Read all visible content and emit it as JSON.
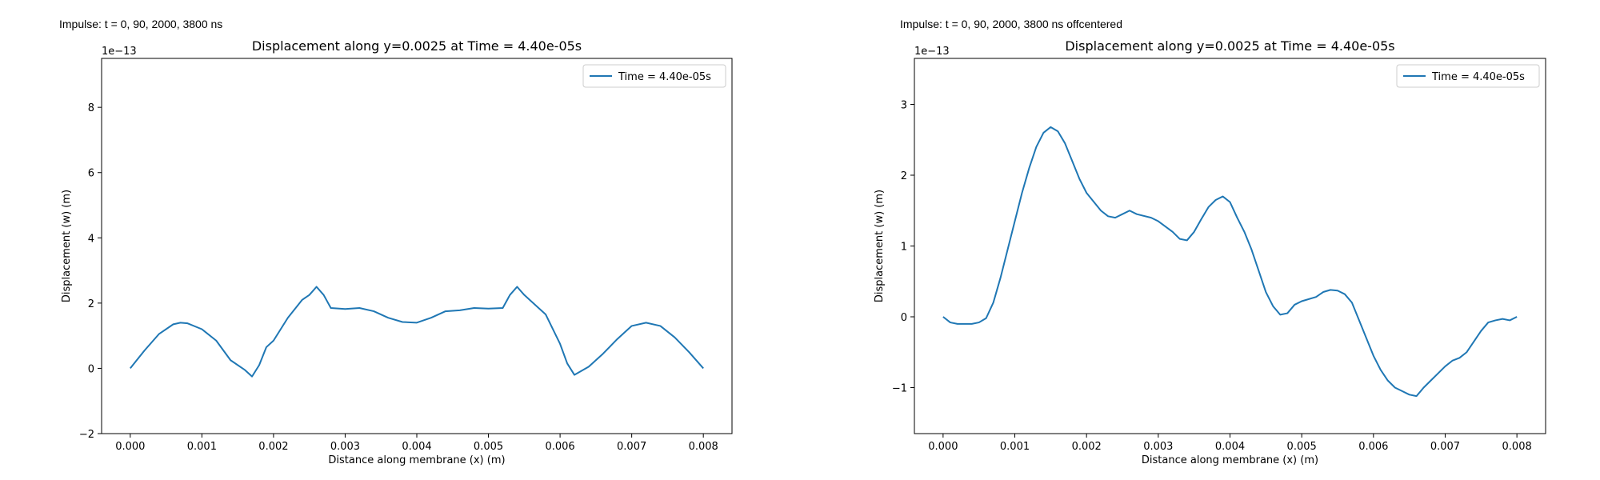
{
  "captions": [
    "Impulse: t = 0, 90, 2000, 3800 ns",
    "Impulse: t = 0, 90, 2000, 3800 ns offcentered"
  ],
  "chart_data": [
    {
      "type": "line",
      "title": "Displacement along y=0.0025 at Time = 4.40e-05s",
      "xlabel": "Distance along membrane (x) (m)",
      "ylabel": "Displacement (w) (m)",
      "y_multiplier": "1e−13",
      "xlim": [
        -0.0004,
        0.0084
      ],
      "ylim": [
        -2.0,
        9.5
      ],
      "xticks": [
        0.0,
        0.001,
        0.002,
        0.003,
        0.004,
        0.005,
        0.006,
        0.007,
        0.008
      ],
      "xtick_labels": [
        "0.000",
        "0.001",
        "0.002",
        "0.003",
        "0.004",
        "0.005",
        "0.006",
        "0.007",
        "0.008"
      ],
      "yticks": [
        -2,
        0,
        2,
        4,
        6,
        8
      ],
      "ytick_labels": [
        "−2",
        "0",
        "2",
        "4",
        "6",
        "8"
      ],
      "grid": false,
      "legend": "upper-right",
      "series": [
        {
          "name": "Time = 4.40e-05s",
          "color": "#1f77b4",
          "x": [
            0.0,
            0.0002,
            0.0004,
            0.0006,
            0.0007,
            0.0008,
            0.001,
            0.0012,
            0.0014,
            0.0016,
            0.0017,
            0.0018,
            0.0019,
            0.002,
            0.0022,
            0.0024,
            0.0025,
            0.0026,
            0.0027,
            0.0028,
            0.003,
            0.0032,
            0.0034,
            0.0036,
            0.0038,
            0.004,
            0.0042,
            0.0044,
            0.0046,
            0.0048,
            0.005,
            0.0052,
            0.0053,
            0.0054,
            0.0055,
            0.0058,
            0.006,
            0.0061,
            0.0062,
            0.0064,
            0.0066,
            0.0068,
            0.007,
            0.0072,
            0.0074,
            0.0076,
            0.0078,
            0.008
          ],
          "y": [
            0.0,
            0.55,
            1.05,
            1.35,
            1.4,
            1.38,
            1.2,
            0.85,
            0.25,
            -0.05,
            -0.25,
            0.1,
            0.65,
            0.85,
            1.55,
            2.1,
            2.25,
            2.5,
            2.25,
            1.85,
            1.82,
            1.85,
            1.75,
            1.55,
            1.42,
            1.4,
            1.55,
            1.75,
            1.78,
            1.85,
            1.83,
            1.85,
            2.25,
            2.5,
            2.25,
            1.65,
            0.75,
            0.15,
            -0.2,
            0.05,
            0.45,
            0.9,
            1.3,
            1.4,
            1.3,
            0.95,
            0.5,
            0.0
          ]
        }
      ]
    },
    {
      "type": "line",
      "title": "Displacement along y=0.0025 at Time = 4.40e-05s",
      "xlabel": "Distance along membrane (x) (m)",
      "ylabel": "Displacement (w) (m)",
      "y_multiplier": "1e−13",
      "xlim": [
        -0.0004,
        0.0084
      ],
      "ylim": [
        -1.65,
        3.65
      ],
      "xticks": [
        0.0,
        0.001,
        0.002,
        0.003,
        0.004,
        0.005,
        0.006,
        0.007,
        0.008
      ],
      "xtick_labels": [
        "0.000",
        "0.001",
        "0.002",
        "0.003",
        "0.004",
        "0.005",
        "0.006",
        "0.007",
        "0.008"
      ],
      "yticks": [
        -1,
        0,
        1,
        2,
        3
      ],
      "ytick_labels": [
        "−1",
        "0",
        "1",
        "2",
        "3"
      ],
      "grid": false,
      "legend": "upper-right",
      "series": [
        {
          "name": "Time = 4.40e-05s",
          "color": "#1f77b4",
          "x": [
            0.0,
            0.0001,
            0.0002,
            0.0003,
            0.0004,
            0.0005,
            0.0006,
            0.0007,
            0.0008,
            0.0009,
            0.001,
            0.0011,
            0.0012,
            0.0013,
            0.0014,
            0.0015,
            0.0016,
            0.0017,
            0.0018,
            0.0019,
            0.002,
            0.0022,
            0.0023,
            0.0024,
            0.0025,
            0.0026,
            0.0027,
            0.0029,
            0.003,
            0.0032,
            0.0033,
            0.0034,
            0.0035,
            0.0036,
            0.0037,
            0.0038,
            0.0039,
            0.004,
            0.0041,
            0.0042,
            0.0043,
            0.0044,
            0.0045,
            0.0046,
            0.0047,
            0.0048,
            0.0049,
            0.005,
            0.0052,
            0.0053,
            0.0054,
            0.0055,
            0.0056,
            0.0057,
            0.0058,
            0.0059,
            0.006,
            0.0061,
            0.0062,
            0.0063,
            0.0064,
            0.0065,
            0.0066,
            0.0067,
            0.0068,
            0.0069,
            0.007,
            0.0071,
            0.0072,
            0.0073,
            0.0074,
            0.0075,
            0.0076,
            0.0077,
            0.0078,
            0.0079,
            0.008
          ],
          "y": [
            0.0,
            -0.08,
            -0.1,
            -0.1,
            -0.1,
            -0.08,
            -0.02,
            0.2,
            0.55,
            0.95,
            1.35,
            1.75,
            2.1,
            2.4,
            2.6,
            2.68,
            2.62,
            2.45,
            2.2,
            1.95,
            1.75,
            1.5,
            1.42,
            1.4,
            1.45,
            1.5,
            1.45,
            1.4,
            1.35,
            1.2,
            1.1,
            1.08,
            1.2,
            1.38,
            1.55,
            1.65,
            1.7,
            1.62,
            1.4,
            1.2,
            0.95,
            0.65,
            0.35,
            0.15,
            0.03,
            0.05,
            0.17,
            0.22,
            0.28,
            0.35,
            0.38,
            0.37,
            0.32,
            0.2,
            -0.05,
            -0.3,
            -0.55,
            -0.75,
            -0.9,
            -1.0,
            -1.05,
            -1.1,
            -1.12,
            -1.0,
            -0.9,
            -0.8,
            -0.7,
            -0.62,
            -0.58,
            -0.5,
            -0.35,
            -0.2,
            -0.08,
            -0.05,
            -0.03,
            -0.05,
            0.0
          ]
        }
      ]
    }
  ]
}
